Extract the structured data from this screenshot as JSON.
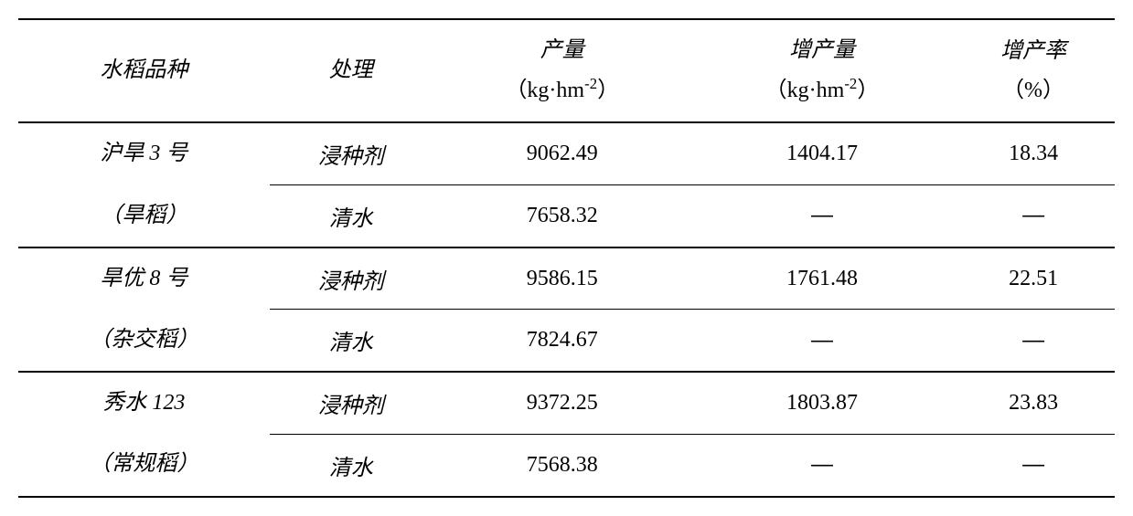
{
  "headers": {
    "variety": "水稻品种",
    "treatment": "处理",
    "yield_line1": "产量",
    "yield_line2": "（kg·hm⁻²）",
    "increase_line1": "增产量",
    "increase_line2": "（kg·hm⁻²）",
    "rate_line1": "增产率",
    "rate_line2": "（%）"
  },
  "varieties": [
    {
      "name_line1": "沪旱 3 号",
      "name_line2": "（旱稻）",
      "rows": [
        {
          "treatment": "浸种剂",
          "yield": "9062.49",
          "increase": "1404.17",
          "rate": "18.34"
        },
        {
          "treatment": "清水",
          "yield": "7658.32",
          "increase": "—",
          "rate": "—"
        }
      ]
    },
    {
      "name_line1": "旱优 8 号",
      "name_line2": "（杂交稻）",
      "rows": [
        {
          "treatment": "浸种剂",
          "yield": "9586.15",
          "increase": "1761.48",
          "rate": "22.51"
        },
        {
          "treatment": "清水",
          "yield": "7824.67",
          "increase": "—",
          "rate": "—"
        }
      ]
    },
    {
      "name_line1": "秀水 123",
      "name_line2": "（常规稻）",
      "rows": [
        {
          "treatment": "浸种剂",
          "yield": "9372.25",
          "increase": "1803.87",
          "rate": "23.83"
        },
        {
          "treatment": "清水",
          "yield": "7568.38",
          "increase": "—",
          "rate": "—"
        }
      ]
    }
  ]
}
